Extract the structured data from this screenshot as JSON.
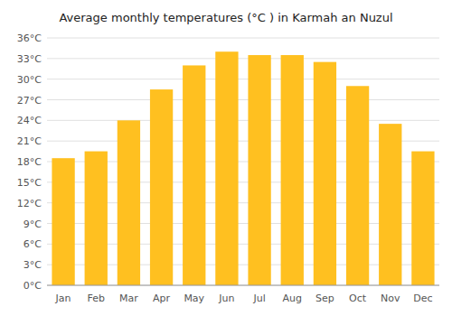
{
  "chart_data": {
    "type": "bar",
    "title": "Average monthly temperatures (°C ) in Karmah an Nuzul",
    "categories": [
      "Jan",
      "Feb",
      "Mar",
      "Apr",
      "May",
      "Jun",
      "Jul",
      "Aug",
      "Sep",
      "Oct",
      "Nov",
      "Dec"
    ],
    "values": [
      18.5,
      19.5,
      24.0,
      28.5,
      32.0,
      34.0,
      33.5,
      33.5,
      32.5,
      29.0,
      23.5,
      19.5
    ],
    "color": "#FFC020",
    "ylim": [
      0,
      36
    ],
    "yticks": [
      {
        "value": 0,
        "label": "0°C"
      },
      {
        "value": 3,
        "label": "3°C"
      },
      {
        "value": 6,
        "label": "6°C"
      },
      {
        "value": 9,
        "label": "9°C"
      },
      {
        "value": 12,
        "label": "12°C"
      },
      {
        "value": 15,
        "label": "15°C"
      },
      {
        "value": 18,
        "label": "18°C"
      },
      {
        "value": 21,
        "label": "21°C"
      },
      {
        "value": 24,
        "label": "24°C"
      },
      {
        "value": 27,
        "label": "27°C"
      },
      {
        "value": 30,
        "label": "30°C"
      },
      {
        "value": 33,
        "label": "33°C"
      },
      {
        "value": 36,
        "label": "36°C"
      }
    ],
    "grid": true
  }
}
